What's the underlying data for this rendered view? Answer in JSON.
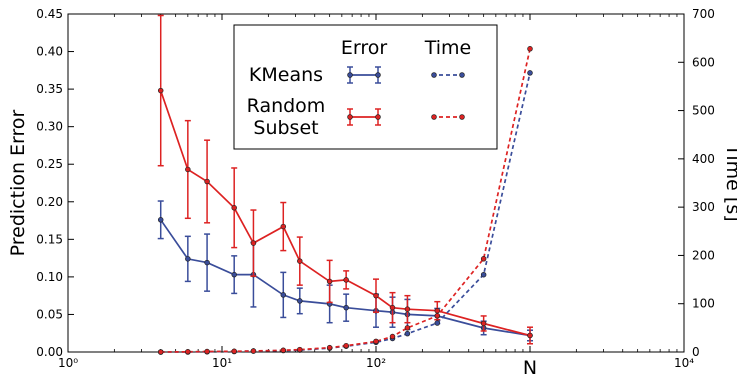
{
  "chart_data": {
    "type": "line",
    "xscale": "log",
    "xlim": [
      1,
      10000
    ],
    "x_ticks": [
      1,
      10,
      100,
      10000
    ],
    "x_tick_labels": [
      "10⁰",
      "10¹",
      "10²",
      "10⁴"
    ],
    "x_marker_value": 1000,
    "x_marker_label": "N",
    "ylabel": "Prediction Error",
    "ylim": [
      0,
      0.45
    ],
    "y_ticks": [
      0,
      0.05,
      0.1,
      0.15,
      0.2,
      0.25,
      0.3,
      0.35,
      0.4,
      0.45
    ],
    "y_tick_labels": [
      "0.00",
      "0.05",
      "0.10",
      "0.15",
      "0.20",
      "0.25",
      "0.30",
      "0.35",
      "0.40",
      "0.45"
    ],
    "y2label": "Time [s]",
    "y2lim": [
      0,
      700
    ],
    "y2_ticks": [
      0,
      100,
      200,
      300,
      400,
      500,
      600,
      700
    ],
    "y2_tick_labels": [
      "0",
      "100",
      "200",
      "300",
      "400",
      "500",
      "600",
      "700"
    ],
    "legend": {
      "placement": "top-center",
      "col_headers": [
        "Error",
        "Time"
      ],
      "rows": [
        "KMeans",
        "Random\nSubset"
      ]
    },
    "series": [
      {
        "name": "KMeans",
        "metric": "Error",
        "axis": "left",
        "style": "solid",
        "color": "#3a4d9a",
        "x": [
          4,
          6,
          8,
          12,
          16,
          25,
          32,
          50,
          64,
          100,
          128,
          160,
          250,
          500,
          1000
        ],
        "values": [
          0.176,
          0.124,
          0.119,
          0.103,
          0.103,
          0.076,
          0.068,
          0.064,
          0.059,
          0.055,
          0.053,
          0.05,
          0.048,
          0.032,
          0.022
        ],
        "err": [
          0.025,
          0.03,
          0.038,
          0.025,
          0.043,
          0.03,
          0.017,
          0.025,
          0.018,
          0.022,
          0.02,
          0.02,
          0.01,
          0.009,
          0.007
        ]
      },
      {
        "name": "Random Subset",
        "metric": "Error",
        "axis": "left",
        "style": "solid",
        "color": "#dd2222",
        "x": [
          4,
          6,
          8,
          12,
          16,
          25,
          32,
          50,
          64,
          100,
          128,
          160,
          250,
          500,
          1000
        ],
        "values": [
          0.348,
          0.243,
          0.227,
          0.192,
          0.145,
          0.167,
          0.121,
          0.094,
          0.096,
          0.075,
          0.059,
          0.057,
          0.055,
          0.038,
          0.022
        ],
        "err": [
          0.1,
          0.065,
          0.055,
          0.053,
          0.044,
          0.032,
          0.032,
          0.028,
          0.012,
          0.022,
          0.02,
          0.018,
          0.012,
          0.01,
          0.011
        ]
      },
      {
        "name": "KMeans",
        "metric": "Time",
        "axis": "right",
        "style": "dashed",
        "color": "#3a4d9a",
        "x": [
          4,
          6,
          8,
          12,
          16,
          25,
          32,
          50,
          64,
          100,
          128,
          160,
          250,
          500,
          1000
        ],
        "values": [
          0,
          0,
          0.5,
          1,
          2,
          3,
          4,
          8,
          12,
          20,
          28,
          38,
          60,
          160,
          578
        ]
      },
      {
        "name": "Random Subset",
        "metric": "Time",
        "axis": "right",
        "style": "dashed",
        "color": "#dd2222",
        "x": [
          4,
          6,
          8,
          12,
          16,
          25,
          32,
          50,
          64,
          100,
          128,
          160,
          250,
          500,
          1000
        ],
        "values": [
          0,
          0.5,
          1,
          1.5,
          2,
          3.5,
          5,
          9,
          13,
          22,
          32,
          50,
          75,
          193,
          628
        ]
      }
    ]
  }
}
